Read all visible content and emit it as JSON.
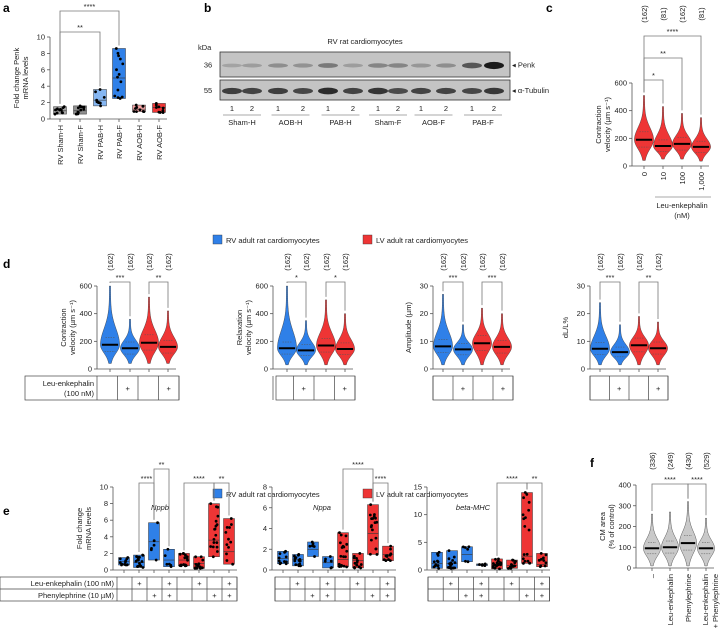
{
  "legend": {
    "rv": "RV adult rat cardiomyocytes",
    "lv": "LV adult rat cardiomyocytes",
    "rv_color": "#2f80e8",
    "lv_color": "#ee3535"
  },
  "chart_data": [
    {
      "id": "a",
      "panel_label": "a",
      "type": "box",
      "ylabel": [
        "Fold change Penk",
        "mRNA levels"
      ],
      "ylim": [
        0,
        10
      ],
      "yticks": [
        "0",
        "2",
        "4",
        "6",
        "8",
        "10"
      ],
      "categories": [
        "RV Sham-H",
        "RV Sham-F",
        "RV PAB-H",
        "RV PAB-F",
        "RV AOB-H",
        "RV AOB-F"
      ],
      "series": [
        {
          "min": 0.6,
          "median": 1.0,
          "max": 1.5,
          "n": 12,
          "color": "#a6a6a6"
        },
        {
          "min": 0.6,
          "median": 1.0,
          "max": 1.6,
          "n": 12,
          "color": "#8f8f8f"
        },
        {
          "min": 1.6,
          "median": 2.3,
          "max": 3.6,
          "n": 10,
          "color": "#85b6f2"
        },
        {
          "min": 2.5,
          "median": 5.0,
          "max": 8.6,
          "n": 14,
          "color": "#2f80e8"
        },
        {
          "min": 0.9,
          "median": 1.2,
          "max": 1.7,
          "n": 10,
          "color": "#f4a3a3"
        },
        {
          "min": 0.8,
          "median": 1.4,
          "max": 1.9,
          "n": 10,
          "color": "#ee3535"
        }
      ],
      "significance": [
        {
          "from": 0,
          "to": 3,
          "label": "****"
        },
        {
          "from": 0,
          "to": 2,
          "label": "**"
        }
      ]
    },
    {
      "id": "b",
      "panel_label": "b",
      "type": "blot",
      "title": "RV rat cardiomyocytes",
      "unit_label": "kDa",
      "rows": [
        {
          "marker": "36",
          "label": "◂ Penk",
          "intensities": [
            0.18,
            0.22,
            0.3,
            0.28,
            0.42,
            0.22,
            0.35,
            0.35,
            0.25,
            0.3,
            0.62,
            0.95
          ]
        },
        {
          "marker": "55",
          "label": "◂ α-Tubulin",
          "intensities": [
            0.75,
            0.72,
            0.75,
            0.7,
            0.85,
            0.72,
            0.8,
            0.68,
            0.72,
            0.72,
            0.7,
            0.78
          ]
        }
      ],
      "lanes": [
        "1",
        "2",
        "1",
        "2",
        "1",
        "2",
        "1",
        "2",
        "1",
        "2",
        "1",
        "2"
      ],
      "groups": [
        "Sham-H",
        "AOB-H",
        "PAB-H",
        "Sham-F",
        "AOB-F",
        "PAB-F"
      ]
    },
    {
      "id": "c",
      "panel_label": "c",
      "type": "violin",
      "ylabel": [
        "Contraction",
        "velocity (µm s⁻¹)"
      ],
      "ylim": [
        0,
        600
      ],
      "yticks": [
        "0",
        "200",
        "400",
        "600"
      ],
      "categories": [
        "0",
        "10",
        "100",
        "1,000"
      ],
      "xlabel": [
        "Leu-enkephalin",
        "(nM)"
      ],
      "counts": [
        "(162)",
        "(81)",
        "(162)",
        "(81)"
      ],
      "series": [
        {
          "min": 40,
          "median": 190,
          "max": 510,
          "color": "#ee3535"
        },
        {
          "min": 50,
          "median": 145,
          "max": 430,
          "color": "#ee3535"
        },
        {
          "min": 50,
          "median": 160,
          "max": 380,
          "color": "#ee3535"
        },
        {
          "min": 35,
          "median": 138,
          "max": 350,
          "color": "#ee3535"
        }
      ],
      "significance": [
        {
          "from": 0,
          "to": 1,
          "label": "*"
        },
        {
          "from": 0,
          "to": 2,
          "label": "**"
        },
        {
          "from": 0,
          "to": 3,
          "label": "****"
        }
      ]
    },
    {
      "id": "d1",
      "panel_label": "d",
      "type": "violin",
      "ylabel": [
        "Contraction",
        "velocity (µm s⁻¹)"
      ],
      "ylim": [
        0,
        600
      ],
      "yticks": [
        "0",
        "200",
        "400",
        "600"
      ],
      "counts": [
        "(162)",
        "(162)",
        "(162)",
        "(162)"
      ],
      "table": {
        "row_label": [
          "Leu-enkephalin",
          "(100 nM)"
        ],
        "values": [
          "",
          "+",
          "",
          "+"
        ]
      },
      "series": [
        {
          "min": 40,
          "median": 175,
          "max": 600,
          "color": "#2f80e8"
        },
        {
          "min": 40,
          "median": 150,
          "max": 360,
          "color": "#2f80e8"
        },
        {
          "min": 40,
          "median": 190,
          "max": 520,
          "color": "#ee3535"
        },
        {
          "min": 40,
          "median": 160,
          "max": 420,
          "color": "#ee3535"
        }
      ],
      "significance": [
        {
          "from": 0,
          "to": 1,
          "label": "***"
        },
        {
          "from": 2,
          "to": 3,
          "label": "**"
        }
      ]
    },
    {
      "id": "d2",
      "type": "violin",
      "ylabel": [
        "Relaxation",
        "velocity (µm s⁻¹)"
      ],
      "ylim": [
        0,
        600
      ],
      "yticks": [
        "0",
        "200",
        "400",
        "600"
      ],
      "counts": [
        "(162)",
        "(162)",
        "(162)",
        "(162)"
      ],
      "table": {
        "values": [
          "",
          "+",
          "",
          "+"
        ]
      },
      "series": [
        {
          "min": 30,
          "median": 150,
          "max": 600,
          "color": "#2f80e8"
        },
        {
          "min": 30,
          "median": 135,
          "max": 350,
          "color": "#2f80e8"
        },
        {
          "min": 30,
          "median": 170,
          "max": 500,
          "color": "#ee3535"
        },
        {
          "min": 30,
          "median": 145,
          "max": 400,
          "color": "#ee3535"
        }
      ],
      "significance": [
        {
          "from": 0,
          "to": 1,
          "label": "*"
        },
        {
          "from": 2,
          "to": 3,
          "label": "*"
        }
      ]
    },
    {
      "id": "d3",
      "type": "violin",
      "ylabel": [
        "Amplitude (µm)"
      ],
      "ylim": [
        0,
        30
      ],
      "yticks": [
        "0",
        "10",
        "20",
        "30"
      ],
      "counts": [
        "(162)",
        "(162)",
        "(162)",
        "(162)"
      ],
      "table": {
        "values": [
          "",
          "+",
          "",
          "+"
        ]
      },
      "series": [
        {
          "min": 1.5,
          "median": 8.2,
          "max": 27,
          "color": "#2f80e8"
        },
        {
          "min": 1.5,
          "median": 7.1,
          "max": 16,
          "color": "#2f80e8"
        },
        {
          "min": 1.5,
          "median": 9.3,
          "max": 22,
          "color": "#ee3535"
        },
        {
          "min": 1.5,
          "median": 8.0,
          "max": 20,
          "color": "#ee3535"
        }
      ],
      "significance": [
        {
          "from": 0,
          "to": 1,
          "label": "***"
        },
        {
          "from": 2,
          "to": 3,
          "label": "***"
        }
      ]
    },
    {
      "id": "d4",
      "type": "violin",
      "ylabel": [
        "dL/L%"
      ],
      "ylim": [
        0,
        30
      ],
      "yticks": [
        "0",
        "10",
        "20",
        "30"
      ],
      "counts": [
        "(162)",
        "(162)",
        "(162)",
        "(162)"
      ],
      "table": {
        "values": [
          "",
          "+",
          "",
          "+"
        ]
      },
      "series": [
        {
          "min": 1.5,
          "median": 7.3,
          "max": 24,
          "color": "#2f80e8"
        },
        {
          "min": 1.5,
          "median": 6.1,
          "max": 16,
          "color": "#2f80e8"
        },
        {
          "min": 1.5,
          "median": 8.6,
          "max": 19,
          "color": "#ee3535"
        },
        {
          "min": 1.5,
          "median": 7.5,
          "max": 17,
          "color": "#ee3535"
        }
      ],
      "significance": [
        {
          "from": 0,
          "to": 1,
          "label": "***"
        },
        {
          "from": 2,
          "to": 3,
          "label": "**"
        }
      ]
    },
    {
      "id": "e1",
      "panel_label": "e",
      "type": "box",
      "title": "Nppb",
      "ylabel": [
        "Fold change",
        "mRNA levels"
      ],
      "ylim": [
        0,
        10
      ],
      "yticks": [
        "0",
        "2",
        "4",
        "6",
        "8",
        "10"
      ],
      "table": {
        "row_labels": [
          "Leu-enkephalin (100 nM)",
          "Phenylephrine (10 µM)"
        ],
        "rows": [
          [
            "",
            "+",
            "",
            "+",
            "",
            "+",
            "",
            "+"
          ],
          [
            "",
            "",
            "+",
            "+",
            "",
            "",
            "+",
            "+"
          ]
        ]
      },
      "series": [
        {
          "min": 0.6,
          "median": 1.0,
          "max": 1.5,
          "n": 12,
          "color": "#2f80e8"
        },
        {
          "min": 0.3,
          "median": 0.9,
          "max": 1.8,
          "n": 16,
          "color": "#2f80e8"
        },
        {
          "min": 1.2,
          "median": 3.4,
          "max": 5.7,
          "n": 6,
          "color": "#2f80e8"
        },
        {
          "min": 0.4,
          "median": 1.2,
          "max": 2.5,
          "n": 6,
          "color": "#2f80e8"
        },
        {
          "min": 0.5,
          "median": 1.2,
          "max": 2.0,
          "n": 16,
          "color": "#ee3535"
        },
        {
          "min": 0.2,
          "median": 0.8,
          "max": 1.6,
          "n": 14,
          "color": "#ee3535"
        },
        {
          "min": 1.6,
          "median": 3.6,
          "max": 8.0,
          "n": 18,
          "color": "#ee3535"
        },
        {
          "min": 0.7,
          "median": 2.2,
          "max": 6.2,
          "n": 12,
          "color": "#ee3535"
        }
      ],
      "significance": [
        {
          "from": 1,
          "to": 2,
          "label": "****"
        },
        {
          "from": 2,
          "to": 3,
          "label": "**",
          "level": 1
        },
        {
          "from": 4,
          "to": 6,
          "label": "****"
        },
        {
          "from": 6,
          "to": 7,
          "label": "**"
        }
      ]
    },
    {
      "id": "e2",
      "type": "box",
      "title": "Nppa",
      "ylim": [
        0,
        8
      ],
      "yticks": [
        "0",
        "2",
        "4",
        "6",
        "8"
      ],
      "table": {
        "rows": [
          [
            "",
            "+",
            "",
            "+",
            "",
            "+",
            "",
            "+"
          ],
          [
            "",
            "",
            "+",
            "+",
            "",
            "",
            "+",
            "+"
          ]
        ]
      },
      "series": [
        {
          "min": 0.6,
          "median": 1.1,
          "max": 1.8,
          "n": 12,
          "color": "#2f80e8"
        },
        {
          "min": 0.4,
          "median": 1.0,
          "max": 1.5,
          "n": 14,
          "color": "#2f80e8"
        },
        {
          "min": 1.3,
          "median": 2.0,
          "max": 2.7,
          "n": 6,
          "color": "#2f80e8"
        },
        {
          "min": 0.2,
          "median": 0.7,
          "max": 1.3,
          "n": 6,
          "color": "#2f80e8"
        },
        {
          "min": 0.3,
          "median": 1.0,
          "max": 3.6,
          "n": 18,
          "color": "#ee3535"
        },
        {
          "min": 0.2,
          "median": 0.9,
          "max": 1.6,
          "n": 14,
          "color": "#ee3535"
        },
        {
          "min": 1.5,
          "median": 3.5,
          "max": 6.3,
          "n": 18,
          "color": "#ee3535"
        },
        {
          "min": 0.9,
          "median": 1.5,
          "max": 2.3,
          "n": 12,
          "color": "#ee3535"
        }
      ],
      "significance": [
        {
          "from": 4,
          "to": 6,
          "label": "****",
          "level": 1
        },
        {
          "from": 6,
          "to": 7,
          "label": "****"
        }
      ]
    },
    {
      "id": "e3",
      "type": "box",
      "title": "beta-MHC",
      "ylim": [
        0,
        15
      ],
      "yticks": [
        "0",
        "5",
        "10",
        "15"
      ],
      "table": {
        "rows": [
          [
            "",
            "+",
            "",
            "+",
            "",
            "+",
            "",
            "+"
          ],
          [
            "",
            "",
            "+",
            "+",
            "",
            "",
            "+",
            "+"
          ]
        ]
      },
      "series": [
        {
          "min": 0.3,
          "median": 1.2,
          "max": 3.2,
          "n": 12,
          "color": "#2f80e8"
        },
        {
          "min": 0.3,
          "median": 1.2,
          "max": 3.5,
          "n": 14,
          "color": "#2f80e8"
        },
        {
          "min": 1.5,
          "median": 2.8,
          "max": 4.2,
          "n": 6,
          "color": "#2f80e8"
        },
        {
          "min": 0.8,
          "median": 0.95,
          "max": 1.1,
          "n": 5,
          "color": "#2f80e8"
        },
        {
          "min": 0.2,
          "median": 1.0,
          "max": 2.0,
          "n": 18,
          "color": "#ee3535"
        },
        {
          "min": 0.3,
          "median": 0.8,
          "max": 1.8,
          "n": 14,
          "color": "#ee3535"
        },
        {
          "min": 1.2,
          "median": 2.5,
          "max": 14.0,
          "n": 18,
          "color": "#ee3535"
        },
        {
          "min": 0.6,
          "median": 1.0,
          "max": 3.0,
          "n": 10,
          "color": "#ee3535"
        }
      ],
      "significance": [
        {
          "from": 4,
          "to": 6,
          "label": "****"
        },
        {
          "from": 6,
          "to": 7,
          "label": "**"
        }
      ]
    },
    {
      "id": "f",
      "panel_label": "f",
      "type": "violin",
      "ylabel": [
        "CM area",
        "(% of control)"
      ],
      "ylim": [
        0,
        400
      ],
      "yticks": [
        "0",
        "100",
        "200",
        "300",
        "400"
      ],
      "categories": [
        "–",
        "Leu-enkephalin",
        "Phenylephrine",
        "Leu-enkephalin",
        "+ Phenylephrine"
      ],
      "counts": [
        "(336)",
        "(249)",
        "(430)",
        "(529)"
      ],
      "series": [
        {
          "min": 10,
          "median": 95,
          "max": 260,
          "color": "#c9c9c9"
        },
        {
          "min": 10,
          "median": 100,
          "max": 270,
          "color": "#c9c9c9"
        },
        {
          "min": 10,
          "median": 120,
          "max": 320,
          "color": "#c9c9c9"
        },
        {
          "min": 10,
          "median": 95,
          "max": 240,
          "color": "#c9c9c9"
        }
      ],
      "significance": [
        {
          "from": 0,
          "to": 2,
          "label": "****"
        },
        {
          "from": 2,
          "to": 3,
          "label": "****"
        }
      ]
    }
  ]
}
